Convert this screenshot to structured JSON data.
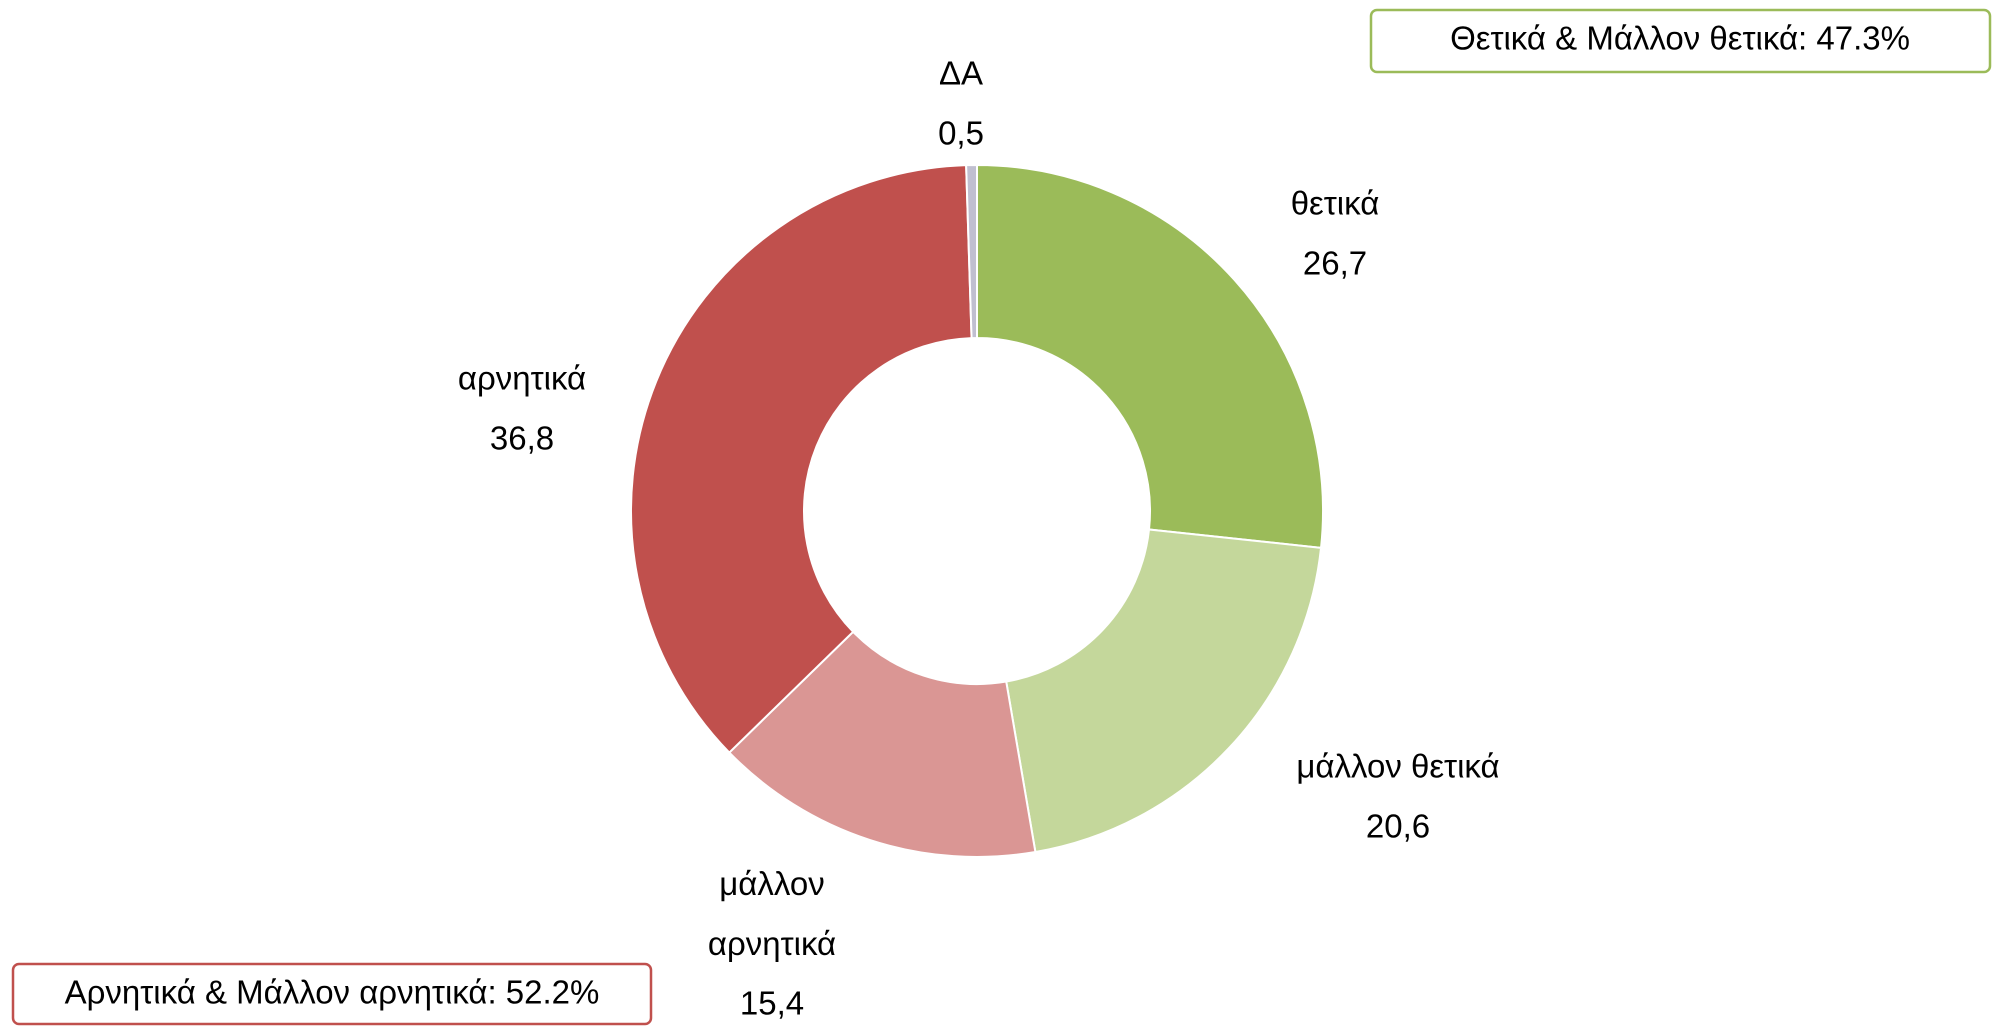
{
  "chart_data": {
    "type": "donut",
    "categories": [
      "θετικά",
      "μάλλον θετικά",
      "μάλλον αρνητικά",
      "αρνητικά",
      "ΔΑ"
    ],
    "values": [
      26.7,
      20.6,
      15.4,
      36.8,
      0.5
    ],
    "value_labels": [
      "26,7",
      "20,6",
      "15,4",
      "36,8",
      "0,5"
    ],
    "colors": [
      "#9bbb59",
      "#c4d79b",
      "#da9694",
      "#c0504d",
      "#c0bfd0"
    ],
    "annotations": [
      "Θετικά & Μάλλον θετικά: 47.3%",
      "Αρνητικά & Μάλλον αρνητικά: 52.2%"
    ]
  }
}
